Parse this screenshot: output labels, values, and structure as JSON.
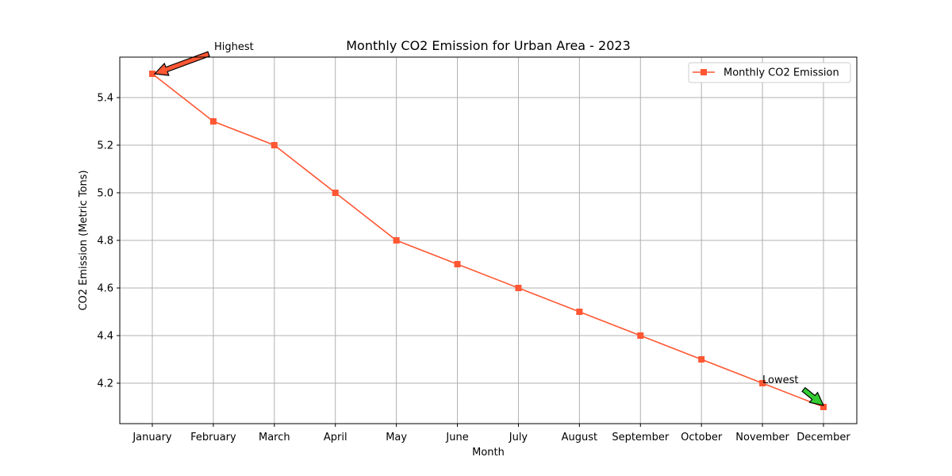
{
  "chart_data": {
    "type": "line",
    "title": "Monthly CO2 Emission for Urban Area - 2023",
    "xlabel": "Month",
    "ylabel": "CO2 Emission (Metric Tons)",
    "categories": [
      "January",
      "February",
      "March",
      "April",
      "May",
      "June",
      "July",
      "August",
      "September",
      "October",
      "November",
      "December"
    ],
    "series": [
      {
        "name": "Monthly CO2 Emission",
        "color": "#FF5733",
        "marker": "square",
        "values": [
          5.5,
          5.3,
          5.2,
          5.0,
          4.8,
          4.7,
          4.6,
          4.5,
          4.4,
          4.3,
          4.2,
          4.1
        ]
      }
    ],
    "ylim": [
      4.03,
      5.57
    ],
    "yticks": [
      "4.2",
      "4.4",
      "4.6",
      "4.8",
      "5.0",
      "5.2",
      "5.4"
    ],
    "grid": true,
    "legend_position": "top-right",
    "annotations": [
      {
        "text": "Highest",
        "category": "January",
        "value": 5.5,
        "arrow_color": "#FF5733"
      },
      {
        "text": "Lowest",
        "category": "December",
        "value": 4.1,
        "arrow_color": "#33CC33"
      }
    ]
  }
}
